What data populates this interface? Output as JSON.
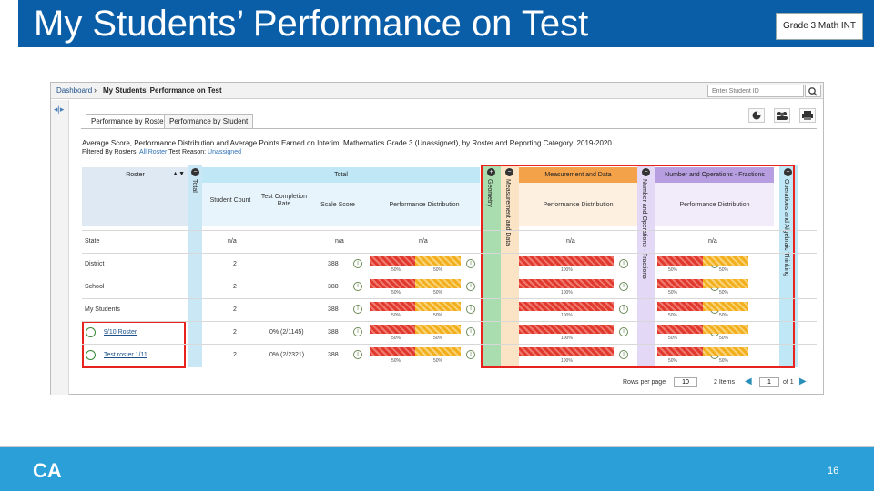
{
  "slide": {
    "title": "My Students’ Performance on Test",
    "grade_badge": "Grade 3 Math INT",
    "logo": "CA",
    "page_number": "16"
  },
  "app": {
    "breadcrumb": {
      "home": "Dashboard",
      "separator": "›",
      "current": "My Students' Performance on Test"
    },
    "student_search_placeholder": "Enter Student ID",
    "tabs": [
      {
        "label": "Performance by Roster",
        "active": true
      },
      {
        "label": "Performance by Student",
        "active": false
      }
    ],
    "subtitle": "Average Score, Performance Distribution and Average Points Earned on Interim: Mathematics Grade 3 (Unassigned), by Roster and Reporting Category: 2019-2020",
    "filters": {
      "label": "Filtered By Rosters:",
      "rosters": "All Roster",
      "reason_label": "Test Reason:",
      "reason": "Unassigned"
    },
    "table": {
      "roster_header": "Roster",
      "total_header": "Total",
      "total_vertical": "Total",
      "categories": [
        {
          "name": "Geometry",
          "color": "#a9dcae"
        },
        {
          "name": "Measurement and Data",
          "color": "#f3a24a"
        },
        {
          "name": "Number and Operations - Fractions",
          "color": "#b79ee0"
        },
        {
          "name": "Operations and Algebraic Thinking",
          "color": "#bfe7f5"
        }
      ],
      "category_vertical_left": "Measurement and Data",
      "category_vertical_right": "Number and Operations - Fractions",
      "col_headers": {
        "student_count": "Student Count",
        "completion": "Test Completion Rate",
        "scale_score": "Scale Score",
        "perf_dist": "Performance Distribution"
      },
      "rows": [
        {
          "name": "State",
          "count": "n/a",
          "completion": "",
          "scale": "n/a",
          "dist": "n/a",
          "link": false,
          "cat_values": [
            "n/a",
            "n/a"
          ]
        },
        {
          "name": "District",
          "count": "2",
          "completion": "",
          "scale": "388",
          "dist": "bar",
          "link": false,
          "pcts": [
            "50%",
            "50%"
          ],
          "cat_pcts": [
            "100%",
            "50%",
            "50%"
          ]
        },
        {
          "name": "School",
          "count": "2",
          "completion": "",
          "scale": "388",
          "dist": "bar",
          "link": false,
          "pcts": [
            "50%",
            "50%"
          ],
          "cat_pcts": [
            "100%",
            "50%",
            "50%"
          ]
        },
        {
          "name": "My Students",
          "count": "2",
          "completion": "",
          "scale": "388",
          "dist": "bar",
          "link": false,
          "pcts": [
            "50%",
            "50%"
          ],
          "cat_pcts": [
            "100%",
            "50%",
            "50%"
          ]
        },
        {
          "name": "9/10 Roster",
          "count": "2",
          "completion": "0% (2/1145)",
          "scale": "388",
          "dist": "bar",
          "link": true,
          "pcts": [
            "50%",
            "50%"
          ],
          "cat_pcts": [
            "100%",
            "50%",
            "50%"
          ]
        },
        {
          "name": "Test roster 1/11",
          "count": "2",
          "completion": "0% (2/2321)",
          "scale": "388",
          "dist": "bar",
          "link": true,
          "pcts": [
            "50%",
            "50%"
          ],
          "cat_pcts": [
            "100%",
            "50%",
            "50%"
          ]
        }
      ]
    },
    "pager": {
      "rows_label": "Rows per page",
      "rows_value": "10",
      "items": "2 Items",
      "page": "1",
      "of": "of 1"
    }
  }
}
